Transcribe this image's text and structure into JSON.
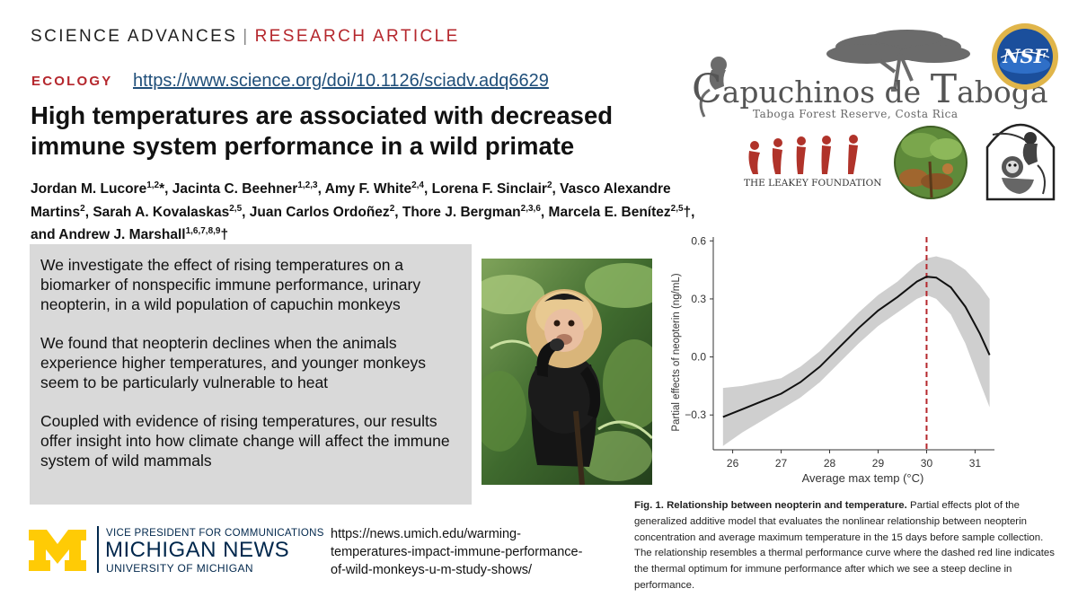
{
  "header": {
    "journal": "SCIENCE ADVANCES",
    "separator": "|",
    "article_type": "RESEARCH ARTICLE",
    "section": "ECOLOGY",
    "doi_url": "https://www.science.org/doi/10.1126/sciadv.adq6629"
  },
  "paper": {
    "title": "High temperatures are associated with decreased immune system performance in a wild primate",
    "authors": [
      {
        "name": "Jordan M. Lucore",
        "sup": "1,2",
        "mark": "*"
      },
      {
        "name": "Jacinta C. Beehner",
        "sup": "1,2,3",
        "mark": ""
      },
      {
        "name": "Amy F. White",
        "sup": "2,4",
        "mark": ""
      },
      {
        "name": "Lorena F. Sinclair",
        "sup": "2",
        "mark": ""
      },
      {
        "name": "Vasco Alexandre Martins",
        "sup": "2",
        "mark": ""
      },
      {
        "name": "Sarah A. Kovalaskas",
        "sup": "2,5",
        "mark": ""
      },
      {
        "name": "Juan Carlos Ordoñez",
        "sup": "2",
        "mark": ""
      },
      {
        "name": "Thore J. Bergman",
        "sup": "2,3,6",
        "mark": ""
      },
      {
        "name": "Marcela E. Benítez",
        "sup": "2,5",
        "mark": "†"
      },
      {
        "name": "Andrew J. Marshall",
        "sup": "1,6,7,8,9",
        "mark": "†"
      }
    ],
    "author_connector": "and"
  },
  "summary": {
    "paragraphs": [
      "We investigate the effect of rising temperatures on a biomarker of nonspecific immune performance, urinary neopterin, in a wild population of capuchin monkeys",
      "We found that neopterin declines when the animals experience higher temperatures, and younger monkeys seem to be particularly vulnerable to heat",
      "Coupled with evidence of rising temperatures, our results offer insight into how climate change will affect the immune system of wild mammals"
    ]
  },
  "logos": {
    "capuchinos_title_part1": "apuchinos de ",
    "capuchinos_title_part2": "aboga",
    "capuchinos_subtitle": "Taboga Forest Reserve, Costa Rica",
    "nsf": "NSF",
    "leakey": "THE LEAKEY FOUNDATION"
  },
  "chart_data": {
    "type": "line",
    "xlabel": "Average max temp (°C)",
    "ylabel": "Partial effects of neopterin (ng/mL)",
    "x_ticks": [
      26,
      27,
      28,
      29,
      30,
      31
    ],
    "y_ticks": [
      -0.3,
      0.0,
      0.3,
      0.6
    ],
    "y_tick_labels": [
      "−0.3",
      "0.0",
      "0.3",
      "0.6"
    ],
    "xlim": [
      25.6,
      31.4
    ],
    "ylim": [
      -0.48,
      0.62
    ],
    "x": [
      25.8,
      26.2,
      26.6,
      27.0,
      27.4,
      27.8,
      28.2,
      28.6,
      29.0,
      29.4,
      29.8,
      30.0,
      30.2,
      30.5,
      30.8,
      31.1,
      31.3
    ],
    "y": [
      -0.31,
      -0.27,
      -0.23,
      -0.19,
      -0.13,
      -0.05,
      0.05,
      0.15,
      0.24,
      0.31,
      0.39,
      0.415,
      0.41,
      0.36,
      0.26,
      0.12,
      0.01
    ],
    "ci_lower": [
      -0.46,
      -0.39,
      -0.33,
      -0.27,
      -0.21,
      -0.13,
      -0.03,
      0.07,
      0.16,
      0.23,
      0.3,
      0.32,
      0.3,
      0.22,
      0.07,
      -0.13,
      -0.26
    ],
    "ci_upper": [
      -0.16,
      -0.15,
      -0.13,
      -0.11,
      -0.05,
      0.03,
      0.13,
      0.23,
      0.32,
      0.39,
      0.48,
      0.51,
      0.52,
      0.5,
      0.45,
      0.37,
      0.3
    ],
    "optimum_x": 30.0,
    "optimum_color": "#b5272d",
    "line_color": "#111111",
    "band_color": "#cfcfcf",
    "grid": false
  },
  "caption": {
    "lead": "Fig. 1. Relationship between neopterin and temperature.",
    "text": "Partial effects plot of the generalized additive model that evaluates the nonlinear relationship between neopterin concentration and average maximum temperature in the 15 days before sample collection. The relationship resembles a thermal performance curve where the dashed red line indicates the thermal optimum for immune performance after which we see a steep decline in performance."
  },
  "umich": {
    "vp_line": "VICE PRESIDENT FOR COMMUNICATIONS",
    "news": "MICHIGAN NEWS",
    "university": "UNIVERSITY OF MICHIGAN",
    "maize": "#ffcb05",
    "blue": "#00274c",
    "news_url": "https://news.umich.edu/warming-temperatures-impact-immune-performance-of-wild-monkeys-u-m-study-shows/",
    "news_url_lines": [
      "https://news.umich.edu/warming-",
      "temperatures-impact-immune-performance-",
      "of-wild-monkeys-u-m-study-shows/"
    ]
  }
}
